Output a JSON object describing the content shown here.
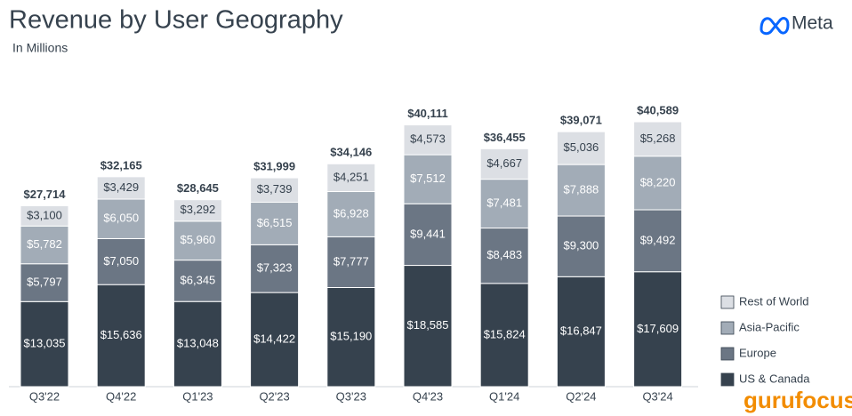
{
  "brand": "Meta",
  "watermark": "gurufocus",
  "chart_data": {
    "type": "stacked_bar",
    "title": "Revenue by User Geography",
    "subtitle": "In Millions",
    "categories": [
      "Q3'22",
      "Q4'22",
      "Q1'23",
      "Q2'23",
      "Q3'23",
      "Q4'23",
      "Q1'24",
      "Q2'24",
      "Q3'24"
    ],
    "series": [
      {
        "name": "US & Canada",
        "color": "#36424e",
        "label_color": "#ffffff",
        "values": [
          13035,
          15636,
          13048,
          14422,
          15190,
          18585,
          15824,
          16847,
          17609
        ],
        "value_labels": [
          "$13,035",
          "$15,636",
          "$13,048",
          "$14,422",
          "$15,190",
          "$18,585",
          "$15,824",
          "$16,847",
          "$17,609"
        ]
      },
      {
        "name": "Europe",
        "color": "#6b7684",
        "label_color": "#ffffff",
        "values": [
          5797,
          7050,
          6345,
          7323,
          7777,
          9441,
          8483,
          9300,
          9492
        ],
        "value_labels": [
          "$5,797",
          "$7,050",
          "$6,345",
          "$7,323",
          "$7,777",
          "$9,441",
          "$8,483",
          "$9,300",
          "$9,492"
        ]
      },
      {
        "name": "Asia-Pacific",
        "color": "#a2acb7",
        "label_color": "#ffffff",
        "values": [
          5782,
          6050,
          5960,
          6515,
          6928,
          7512,
          7481,
          7888,
          8220
        ],
        "value_labels": [
          "$5,782",
          "$6,050",
          "$5,960",
          "$6,515",
          "$6,928",
          "$7,512",
          "$7,481",
          "$7,888",
          "$8,220"
        ]
      },
      {
        "name": "Rest of World",
        "color": "#dcdfe4",
        "label_color": "#36424e",
        "values": [
          3100,
          3429,
          3292,
          3739,
          4251,
          4573,
          4667,
          5036,
          5268
        ],
        "value_labels": [
          "$3,100",
          "$3,429",
          "$3,292",
          "$3,739",
          "$4,251",
          "$4,573",
          "$4,667",
          "$5,036",
          "$5,268"
        ]
      }
    ],
    "totals": [
      27714,
      32165,
      28645,
      31999,
      34146,
      40111,
      36455,
      39071,
      40589
    ],
    "total_labels": [
      "$27,714",
      "$32,165",
      "$28,645",
      "$31,999",
      "$34,146",
      "$40,111",
      "$36,455",
      "$39,071",
      "$40,589"
    ],
    "legend": "right"
  }
}
